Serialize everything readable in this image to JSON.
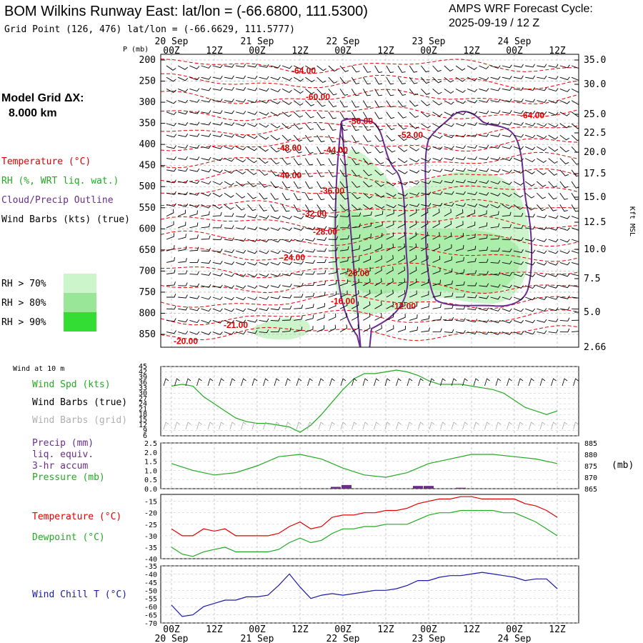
{
  "header": {
    "title": "BOM Wilkins Runway East:  lat/lon = (-66.6800, 111.5300)",
    "cycle_line1": "AMPS WRF Forecast Cycle:",
    "cycle_line2": "2025-09-19 / 12  Z",
    "grid_point": "Grid Point (126, 476) lat/lon = (-66.6629, 111.5777)"
  },
  "left_panel": {
    "model_grid_line1": "Model Grid ΔX:",
    "model_grid_line2": "8.000 km",
    "legend": [
      {
        "text": "Temperature (°C)",
        "color": "#e00000"
      },
      {
        "text": "RH (%, WRT liq. wat.)",
        "color": "#22aa22"
      },
      {
        "text": "Cloud/Precip Outline",
        "color": "#6a2d8f"
      },
      {
        "text": "Wind Barbs (kts) (true)",
        "color": "#000000"
      }
    ],
    "rh_levels": [
      {
        "text": "RH > 70%",
        "color": "#ccf5cc"
      },
      {
        "text": "RH > 80%",
        "color": "#99e699"
      },
      {
        "text": "RH > 90%",
        "color": "#33dd33"
      }
    ]
  },
  "time_axis": {
    "top_ticks": [
      "00Z",
      "12Z",
      "00Z",
      "12Z",
      "00Z",
      "12Z",
      "00Z",
      "12Z",
      "00Z",
      "12Z"
    ],
    "dates": [
      "20 Sep",
      "21 Sep",
      "22 Sep",
      "23 Sep",
      "24 Sep"
    ],
    "bottom_ticks": [
      "00Z",
      "12Z",
      "00Z",
      "12Z",
      "00Z",
      "12Z",
      "00Z",
      "12Z",
      "00Z",
      "12Z"
    ]
  },
  "chart_data": [
    {
      "type": "heatmap",
      "name": "cross-section",
      "ylabel_left": "P (mb)",
      "ylabel_right": "Kft MSL",
      "y_ticks_left": [
        "200",
        "250",
        "300",
        "350",
        "400",
        "450",
        "500",
        "550",
        "600",
        "650",
        "700",
        "750",
        "800",
        "850"
      ],
      "y_ticks_right": [
        "35.0",
        "30.0",
        "25.0",
        "22.5",
        "20.0",
        "17.5",
        "15.0",
        "12.5",
        "10.0",
        "7.5",
        "5.0",
        "2.66"
      ],
      "temperature_labels": [
        {
          "text": "-64.00",
          "t": 40,
          "p": 225
        },
        {
          "text": "-60.00",
          "t": 44,
          "p": 287
        },
        {
          "text": "-56.00",
          "t": 56,
          "p": 345
        },
        {
          "text": "-52.00",
          "t": 70,
          "p": 378
        },
        {
          "text": "-64.00",
          "t": 104,
          "p": 331
        },
        {
          "text": "-48.00",
          "t": 36,
          "p": 408
        },
        {
          "text": "-44.00",
          "t": 49,
          "p": 413
        },
        {
          "text": "-40.00",
          "t": 36,
          "p": 473
        },
        {
          "text": "-36.00",
          "t": 48,
          "p": 510
        },
        {
          "text": "-32.00",
          "t": 43,
          "p": 564
        },
        {
          "text": "-28.00",
          "t": 46,
          "p": 607
        },
        {
          "text": "-24.00",
          "t": 37,
          "p": 668
        },
        {
          "text": "-20.00",
          "t": 55,
          "p": 705
        },
        {
          "text": "-16.00",
          "t": 51,
          "p": 771
        },
        {
          "text": "-12.00",
          "t": 68,
          "p": 783
        },
        {
          "text": "-21.00",
          "t": 21,
          "p": 828
        },
        {
          "text": "-20.00",
          "t": 7,
          "p": 866
        }
      ]
    },
    {
      "type": "line",
      "name": "wind",
      "title": "Wind at 10 m",
      "y_ticks": [
        "45",
        "42",
        "39",
        "36",
        "33",
        "30",
        "27",
        "24",
        "21",
        "18",
        "15",
        "12",
        "9",
        "6"
      ],
      "labels": [
        {
          "text": "Wind Spd (kts)",
          "color": "#22aa22"
        },
        {
          "text": "Wind Barbs (true)",
          "color": "#000000"
        },
        {
          "text": "Wind Barbs (grid)",
          "color": "#b0b0b0"
        }
      ],
      "series": [
        {
          "name": "Wind Spd (kts)",
          "color": "#22aa22",
          "x": [
            0,
            3,
            6,
            9,
            12,
            15,
            18,
            21,
            24,
            27,
            30,
            33,
            36,
            39,
            42,
            45,
            48,
            51,
            54,
            57,
            60,
            63,
            66,
            69,
            72,
            75,
            78,
            81,
            84,
            87,
            90,
            93,
            96,
            99,
            102,
            105,
            108
          ],
          "values": [
            34,
            35,
            34,
            28,
            24,
            20,
            16,
            14,
            13,
            13,
            12,
            11,
            8,
            12,
            18,
            25,
            32,
            38,
            41,
            41,
            42,
            43,
            42,
            40,
            37,
            35,
            35,
            35,
            34,
            33,
            32,
            30,
            26,
            22,
            20,
            18,
            20
          ]
        }
      ]
    },
    {
      "type": "line",
      "name": "precip-pressure",
      "y_ticks_left": [
        "2.5",
        "2.0",
        "1.5",
        "1.0",
        "0.5",
        "0.0"
      ],
      "y_ticks_right": [
        "885",
        "880",
        "875",
        "870",
        "865"
      ],
      "right_unit": "(mb)",
      "labels": [
        {
          "text": "Precip (mm)",
          "color": "#6a2d8f"
        },
        {
          "text": "liq. equiv.",
          "color": "#6a2d8f"
        },
        {
          "text": "3-hr accum",
          "color": "#6a2d8f"
        },
        {
          "text": "Pressure (mb)",
          "color": "#22aa22"
        }
      ],
      "series": [
        {
          "name": "Pressure (mb)",
          "color": "#22aa22",
          "x": [
            0,
            6,
            12,
            18,
            24,
            30,
            36,
            42,
            48,
            54,
            60,
            66,
            72,
            78,
            84,
            90,
            96,
            102,
            108
          ],
          "values": [
            876,
            873,
            871,
            872,
            875,
            879,
            880,
            878,
            874,
            871,
            870,
            872,
            876,
            878,
            880,
            880,
            879,
            878,
            876
          ]
        },
        {
          "name": "Precip (mm)",
          "color": "#6a2d8f",
          "x": [
            46,
            49,
            69,
            72,
            81
          ],
          "values": [
            0.1,
            0.2,
            0.15,
            0.15,
            0.05
          ]
        }
      ]
    },
    {
      "type": "line",
      "name": "temperature-dewpoint",
      "y_ticks": [
        "-15",
        "-20",
        "-25",
        "-30",
        "-35",
        "-40"
      ],
      "labels": [
        {
          "text": "Temperature (°C)",
          "color": "#e00000"
        },
        {
          "text": "Dewpoint (°C)",
          "color": "#22aa22"
        }
      ],
      "series": [
        {
          "name": "Temperature (°C)",
          "color": "#e00000",
          "x": [
            0,
            3,
            6,
            9,
            12,
            15,
            18,
            21,
            24,
            27,
            30,
            33,
            36,
            39,
            42,
            45,
            48,
            51,
            54,
            57,
            60,
            63,
            66,
            69,
            72,
            75,
            78,
            81,
            84,
            87,
            90,
            93,
            96,
            99,
            102,
            105,
            108
          ],
          "values": [
            -27,
            -30,
            -30,
            -27,
            -28,
            -27,
            -30,
            -30,
            -30,
            -30,
            -29,
            -26,
            -24,
            -27,
            -26,
            -22,
            -21,
            -21,
            -20,
            -20,
            -19,
            -19,
            -18,
            -16,
            -15,
            -14,
            -14,
            -13,
            -13,
            -14,
            -14,
            -14,
            -14,
            -16,
            -17,
            -19,
            -22
          ]
        },
        {
          "name": "Dewpoint (°C)",
          "color": "#22aa22",
          "x": [
            0,
            3,
            6,
            9,
            12,
            15,
            18,
            21,
            24,
            27,
            30,
            33,
            36,
            39,
            42,
            45,
            48,
            51,
            54,
            57,
            60,
            63,
            66,
            69,
            72,
            75,
            78,
            81,
            84,
            87,
            90,
            93,
            96,
            99,
            102,
            105,
            108
          ],
          "values": [
            -35,
            -38,
            -39,
            -37,
            -36,
            -35,
            -37,
            -37,
            -37,
            -37,
            -36,
            -33,
            -31,
            -33,
            -32,
            -29,
            -27,
            -27,
            -26,
            -26,
            -25,
            -25,
            -25,
            -23,
            -21,
            -20,
            -20,
            -19,
            -19,
            -19,
            -19,
            -20,
            -20,
            -22,
            -24,
            -27,
            -30
          ]
        }
      ]
    },
    {
      "type": "line",
      "name": "wind-chill",
      "y_ticks": [
        "-35",
        "-40",
        "-45",
        "-50",
        "-55",
        "-60",
        "-65",
        "-70"
      ],
      "labels": [
        {
          "text": "Wind Chill T (°C)",
          "color": "#1a1aa8"
        }
      ],
      "series": [
        {
          "name": "Wind Chill T (°C)",
          "color": "#1a1aa8",
          "x": [
            0,
            3,
            6,
            9,
            12,
            15,
            18,
            21,
            24,
            27,
            30,
            33,
            36,
            39,
            42,
            45,
            48,
            51,
            54,
            57,
            60,
            63,
            66,
            69,
            72,
            75,
            78,
            81,
            84,
            87,
            90,
            93,
            96,
            99,
            102,
            105,
            108
          ],
          "values": [
            -59,
            -66,
            -65,
            -60,
            -58,
            -56,
            -56,
            -54,
            -54,
            -53,
            -47,
            -40,
            -48,
            -55,
            -53,
            -52,
            -53,
            -52,
            -51,
            -50,
            -50,
            -49,
            -47,
            -44,
            -44,
            -42,
            -41,
            -41,
            -40,
            -39,
            -40,
            -41,
            -42,
            -44,
            -43,
            -43,
            -49
          ]
        }
      ]
    }
  ]
}
